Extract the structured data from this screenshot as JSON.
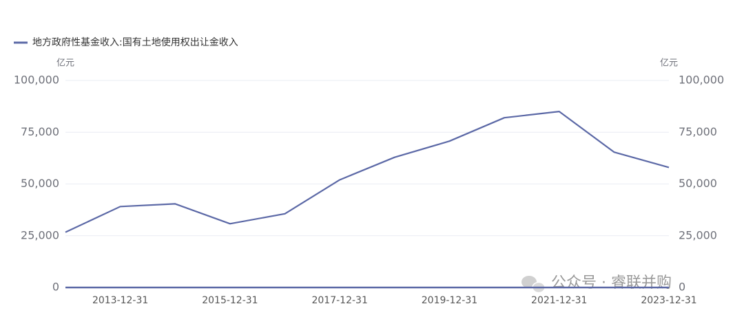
{
  "chart_data": {
    "type": "line",
    "legend_position": "top-left",
    "y_unit": "亿元",
    "y2_unit": "亿元",
    "categories": [
      null,
      "2013-12-31",
      null,
      "2015-12-31",
      null,
      "2017-12-31",
      null,
      "2019-12-31",
      null,
      "2021-12-31",
      null,
      "2023-12-31"
    ],
    "series": [
      {
        "name": "地方政府性基金收入:国有土地使用权出让金收入",
        "color": "#5b68a6",
        "values": [
          26700,
          39100,
          40400,
          30800,
          35600,
          52000,
          62900,
          70700,
          82000,
          85000,
          65400,
          58000
        ]
      }
    ],
    "ylim": [
      0,
      100000
    ],
    "yticks": [
      0,
      {
        "value": 25000,
        "label": "25,000"
      },
      {
        "value": 50000,
        "label": "50,000"
      },
      {
        "value": 75000,
        "label": "75,000"
      },
      {
        "value": 100000,
        "label": "100,000"
      }
    ],
    "y2lim": [
      0,
      100000
    ],
    "y2ticks": [
      0,
      {
        "value": 25000,
        "label": "25,000"
      },
      {
        "value": 50000,
        "label": "50,000"
      },
      {
        "value": 75000,
        "label": "75,000"
      },
      {
        "value": 100000,
        "label": "100,000"
      }
    ],
    "grid": true,
    "watermark": "公众号 · 睿联并购"
  }
}
